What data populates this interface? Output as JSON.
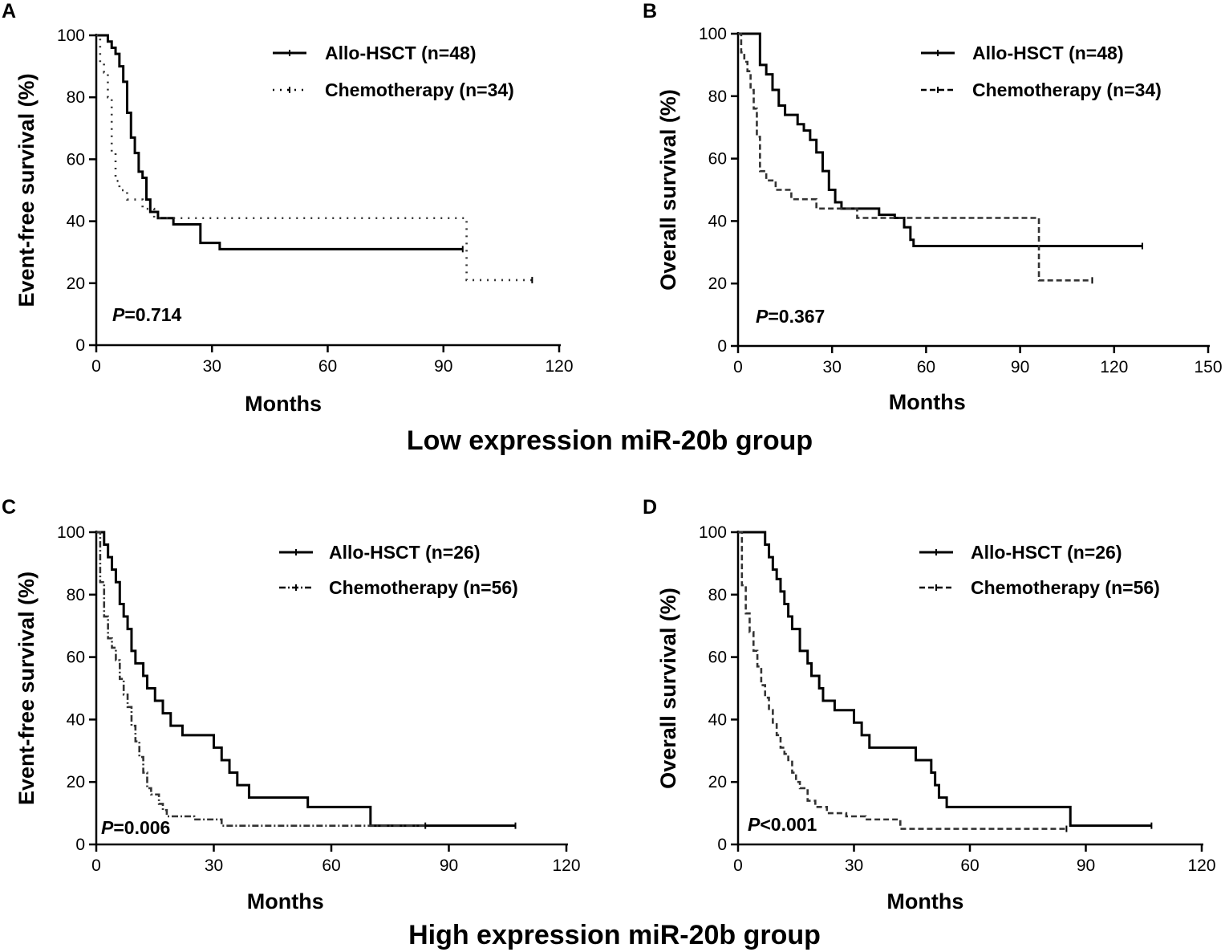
{
  "figure": {
    "group_titles": {
      "low": "Low expression miR-20b group",
      "high": "High expression miR-20b group"
    }
  },
  "chart_data": [
    {
      "panel": "A",
      "type": "line",
      "subtype": "kaplan-meier",
      "xlabel": "Months",
      "ylabel": "Event-free survival (%)",
      "xlim": [
        0,
        120
      ],
      "ylim": [
        0,
        100
      ],
      "xticks": [
        0,
        30,
        60,
        90,
        120
      ],
      "yticks": [
        0,
        20,
        40,
        60,
        80,
        100
      ],
      "p_label": "P",
      "p_text": "=0.714",
      "series": [
        {
          "name": "Allo-HSCT (n=48)",
          "style": "solid",
          "x": [
            0,
            3,
            4,
            5,
            6,
            7,
            8,
            9,
            10,
            11,
            12,
            13,
            14,
            16,
            20,
            27,
            32,
            95
          ],
          "y": [
            100,
            98,
            96,
            94,
            90,
            85,
            75,
            67,
            62,
            56,
            54,
            47,
            43,
            41,
            39,
            33,
            31,
            31
          ]
        },
        {
          "name": "Chemotherapy (n=34)",
          "style": "dotted",
          "x": [
            0,
            1,
            2,
            3,
            4,
            5,
            6,
            8,
            12,
            15,
            96,
            96,
            113
          ],
          "y": [
            100,
            91,
            88,
            80,
            62,
            53,
            50,
            47,
            44,
            41,
            41,
            21,
            21
          ]
        }
      ]
    },
    {
      "panel": "B",
      "type": "line",
      "subtype": "kaplan-meier",
      "xlabel": "Months",
      "ylabel": "Overall survival (%)",
      "xlim": [
        0,
        150
      ],
      "ylim": [
        0,
        100
      ],
      "xticks": [
        0,
        30,
        60,
        90,
        120,
        150
      ],
      "yticks": [
        0,
        20,
        40,
        60,
        80,
        100
      ],
      "p_label": "P",
      "p_text": "=0.367",
      "series": [
        {
          "name": "Allo-HSCT (n=48)",
          "style": "solid",
          "x": [
            0,
            7,
            9,
            11,
            13,
            15,
            19,
            21,
            23,
            25,
            27,
            29,
            31,
            33,
            35,
            45,
            50,
            53,
            55,
            56,
            129
          ],
          "y": [
            100,
            90,
            87,
            82,
            77,
            74,
            71,
            69,
            66,
            62,
            56,
            50,
            46,
            44,
            44,
            42,
            41,
            38,
            34,
            32,
            32
          ]
        },
        {
          "name": "Chemotherapy (n=34)",
          "style": "dashed",
          "x": [
            0,
            1,
            2,
            3,
            4,
            5,
            6,
            7,
            9,
            12,
            17,
            25,
            38,
            96,
            96,
            113
          ],
          "y": [
            100,
            94,
            91,
            88,
            82,
            76,
            67,
            56,
            53,
            50,
            47,
            44,
            41,
            41,
            21,
            21
          ]
        }
      ]
    },
    {
      "panel": "C",
      "type": "line",
      "subtype": "kaplan-meier",
      "xlabel": "Months",
      "ylabel": "Event-free survival (%)",
      "xlim": [
        0,
        120
      ],
      "ylim": [
        0,
        100
      ],
      "xticks": [
        0,
        30,
        60,
        90,
        120
      ],
      "yticks": [
        0,
        20,
        40,
        60,
        80,
        100
      ],
      "p_label": "P",
      "p_text": "=0.006",
      "series": [
        {
          "name": "Allo-HSCT (n=26)",
          "style": "solid",
          "x": [
            0,
            2,
            3,
            4,
            5,
            6,
            7,
            8,
            9,
            10,
            12,
            13,
            15,
            17,
            19,
            22,
            30,
            32,
            34,
            36,
            39,
            54,
            70,
            70,
            107
          ],
          "y": [
            100,
            96,
            92,
            88,
            84,
            77,
            73,
            69,
            62,
            58,
            54,
            50,
            46,
            42,
            38,
            35,
            31,
            27,
            23,
            19,
            15,
            12,
            8,
            6,
            6
          ]
        },
        {
          "name": "Chemotherapy (n=56)",
          "style": "dashdot",
          "x": [
            0,
            1,
            2,
            3,
            4,
            5,
            6,
            7,
            8,
            9,
            10,
            11,
            12,
            13,
            14,
            16,
            17,
            18,
            25,
            32,
            84
          ],
          "y": [
            100,
            84,
            73,
            66,
            63,
            59,
            53,
            48,
            44,
            38,
            33,
            28,
            23,
            18,
            16,
            13,
            11,
            9,
            8,
            6,
            6
          ]
        }
      ]
    },
    {
      "panel": "D",
      "type": "line",
      "subtype": "kaplan-meier",
      "xlabel": "Months",
      "ylabel": "Overall survival (%)",
      "xlim": [
        0,
        120
      ],
      "ylim": [
        0,
        100
      ],
      "xticks": [
        0,
        30,
        60,
        90,
        120
      ],
      "yticks": [
        0,
        20,
        40,
        60,
        80,
        100
      ],
      "p_label": "P",
      "p_text": "<0.001",
      "series": [
        {
          "name": "Allo-HSCT (n=26)",
          "style": "solid",
          "x": [
            0,
            7,
            8,
            9,
            10,
            11,
            12,
            13,
            14,
            16,
            18,
            19,
            21,
            22,
            25,
            30,
            32,
            34,
            46,
            50,
            51,
            52,
            53,
            54,
            55,
            58,
            86,
            86,
            107
          ],
          "y": [
            100,
            96,
            92,
            88,
            85,
            81,
            77,
            73,
            69,
            62,
            58,
            54,
            50,
            46,
            43,
            39,
            35,
            31,
            27,
            23,
            19,
            15,
            15,
            12,
            12,
            12,
            8,
            6,
            6
          ]
        },
        {
          "name": "Chemotherapy (n=56)",
          "style": "dashed",
          "x": [
            0,
            1,
            2,
            3,
            4,
            5,
            6,
            7,
            8,
            9,
            10,
            11,
            12,
            13,
            14,
            15,
            16,
            18,
            20,
            23,
            28,
            33,
            42,
            47,
            85
          ],
          "y": [
            100,
            83,
            74,
            68,
            62,
            57,
            51,
            47,
            43,
            39,
            35,
            31,
            29,
            27,
            23,
            20,
            18,
            14,
            12,
            10,
            9,
            8,
            5,
            5,
            5
          ]
        }
      ]
    }
  ]
}
